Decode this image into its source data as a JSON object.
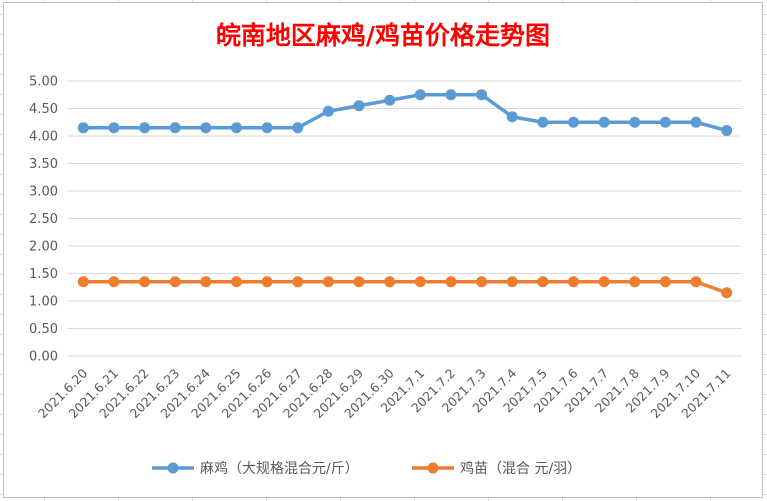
{
  "chart_data": {
    "type": "line",
    "title": "皖南地区麻鸡/鸡苗价格走势图",
    "categories": [
      "2021.6.20",
      "2021.6.21",
      "2021.6.22",
      "2021.6.23",
      "2021.6.24",
      "2021.6.25",
      "2021.6.26",
      "2021.6.27",
      "2021.6.28",
      "2021.6.29",
      "2021.6.30",
      "2021.7.1",
      "2021.7.2",
      "2021.7.3",
      "2021.7.4",
      "2021.7.5",
      "2021.7.6",
      "2021.7.7",
      "2021.7.8",
      "2021.7.9",
      "2021.7.10",
      "2021.7.11"
    ],
    "y_ticks": [
      "0.00",
      "0.50",
      "1.00",
      "1.50",
      "2.00",
      "2.50",
      "3.00",
      "3.50",
      "4.00",
      "4.50",
      "5.00"
    ],
    "ylim": [
      0,
      5
    ],
    "grid": "horizontal",
    "legend_position": "bottom",
    "series": [
      {
        "name": "麻鸡（大规格混合元/斤）",
        "color": "#5b9bd5",
        "values": [
          4.15,
          4.15,
          4.15,
          4.15,
          4.15,
          4.15,
          4.15,
          4.15,
          4.45,
          4.55,
          4.65,
          4.75,
          4.75,
          4.75,
          4.35,
          4.25,
          4.25,
          4.25,
          4.25,
          4.25,
          4.25,
          4.1
        ]
      },
      {
        "name": "鸡苗（混合 元/羽）",
        "color": "#ed7d31",
        "values": [
          1.35,
          1.35,
          1.35,
          1.35,
          1.35,
          1.35,
          1.35,
          1.35,
          1.35,
          1.35,
          1.35,
          1.35,
          1.35,
          1.35,
          1.35,
          1.35,
          1.35,
          1.35,
          1.35,
          1.35,
          1.35,
          1.15
        ]
      }
    ]
  }
}
